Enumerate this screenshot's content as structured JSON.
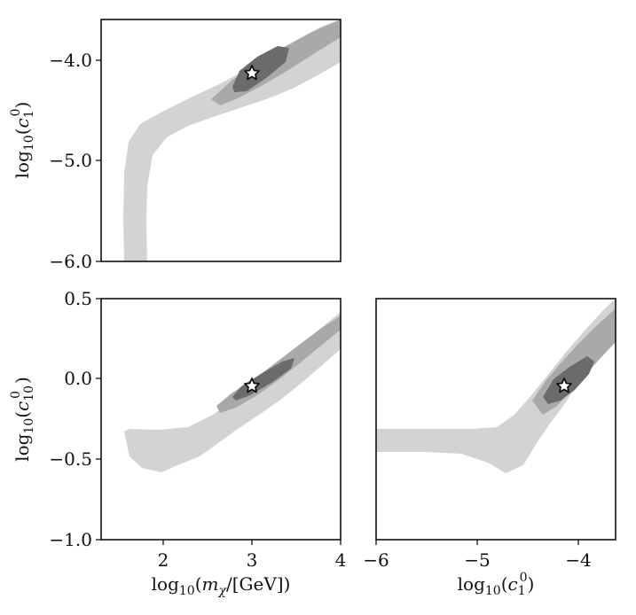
{
  "chart_data": [
    {
      "type": "contour",
      "panel": "top-left",
      "xlabel": "",
      "ylabel": "log10(c1^0)",
      "xlim": [
        1.3,
        4.0
      ],
      "ylim": [
        -6.0,
        -3.6
      ],
      "xticks": [],
      "yticks": [
        {
          "value": -4.0,
          "label": "−4.0"
        },
        {
          "value": -5.0,
          "label": "−5.0"
        },
        {
          "value": -6.0,
          "label": "−6.0"
        }
      ],
      "best_fit": {
        "x": 3.0,
        "y": -4.12
      },
      "contour_colors": [
        "#d3d3d3",
        "#a9a9a9",
        "#6b6b6b"
      ]
    },
    {
      "type": "contour",
      "panel": "bottom-left",
      "xlabel": "log10(m_chi/[GeV])",
      "ylabel": "log10(c10^0)",
      "xlim": [
        1.3,
        4.0
      ],
      "ylim": [
        -1.0,
        0.5
      ],
      "xticks": [
        {
          "value": 2,
          "label": "2"
        },
        {
          "value": 3,
          "label": "3"
        },
        {
          "value": 4,
          "label": "4"
        }
      ],
      "yticks": [
        {
          "value": 0.5,
          "label": "0.5"
        },
        {
          "value": 0.0,
          "label": "0.0"
        },
        {
          "value": -0.5,
          "label": "−0.5"
        },
        {
          "value": -1.0,
          "label": "−1.0"
        }
      ],
      "best_fit": {
        "x": 3.0,
        "y": -0.05
      },
      "contour_colors": [
        "#d3d3d3",
        "#a9a9a9",
        "#6b6b6b"
      ]
    },
    {
      "type": "contour",
      "panel": "bottom-right",
      "xlabel": "log10(c1^0)",
      "ylabel": "",
      "xlim": [
        -6.0,
        -3.6
      ],
      "ylim": [
        -1.0,
        0.5
      ],
      "xticks": [
        {
          "value": -6,
          "label": "−6"
        },
        {
          "value": -5,
          "label": "−5"
        },
        {
          "value": -4,
          "label": "−4"
        }
      ],
      "yticks": [],
      "best_fit": {
        "x": -4.12,
        "y": -0.05
      },
      "contour_colors": [
        "#d3d3d3",
        "#a9a9a9",
        "#6b6b6b"
      ]
    }
  ]
}
